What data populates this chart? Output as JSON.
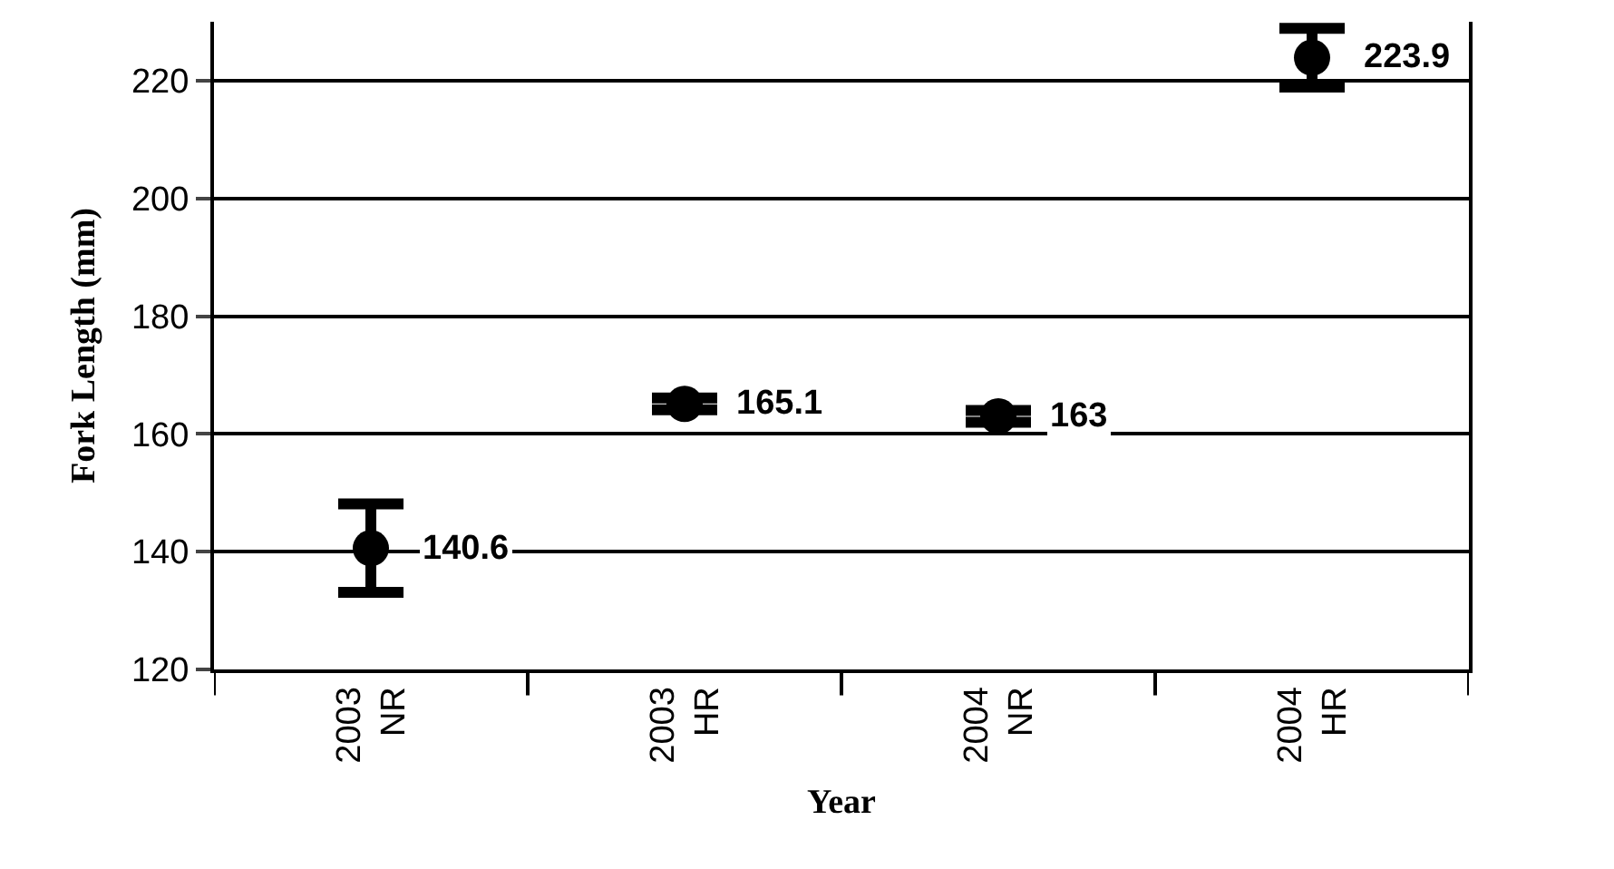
{
  "chart_data": {
    "type": "scatter",
    "xlabel": "Year",
    "ylabel": "Fork Length (mm)",
    "categories": [
      "2003\nNR",
      "2003\nHR",
      "2004\nNR",
      "2004\nHR"
    ],
    "values": [
      140.6,
      165.1,
      163,
      223.9
    ],
    "errors": [
      7.5,
      1,
      1,
      5
    ],
    "color": "#000000",
    "marker": "circle",
    "data_labels": true,
    "ylim": [
      120,
      230
    ],
    "yticks": [
      120,
      140,
      160,
      180,
      200,
      220
    ],
    "grid": "y",
    "legend": false
  }
}
